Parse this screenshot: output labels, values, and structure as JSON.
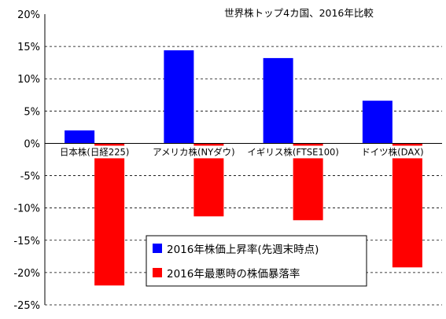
{
  "chart_data": {
    "type": "bar",
    "title": "世界株トップ4カ国、2016年比較",
    "categories": [
      "日本株(日経225)",
      "アメリカ株(NYダウ)",
      "イギリス株(FTSE100)",
      "ドイツ株(DAX)"
    ],
    "series": [
      {
        "name": "2016年株価上昇率(先週末時点)",
        "color": "#0000ff",
        "values": [
          2.0,
          14.4,
          13.2,
          6.6
        ]
      },
      {
        "name": "2016年最悪時の株価暴落率",
        "color": "#ff0000",
        "values": [
          -22.0,
          -11.3,
          -11.9,
          -19.2
        ]
      }
    ],
    "ylim": [
      -25,
      20
    ],
    "yticks": [
      "20%",
      "15%",
      "10%",
      "5%",
      "0%",
      "-5%",
      "-10%",
      "-15%",
      "-20%",
      "-25%"
    ],
    "grid": true,
    "legend_position": "bottom-center"
  }
}
